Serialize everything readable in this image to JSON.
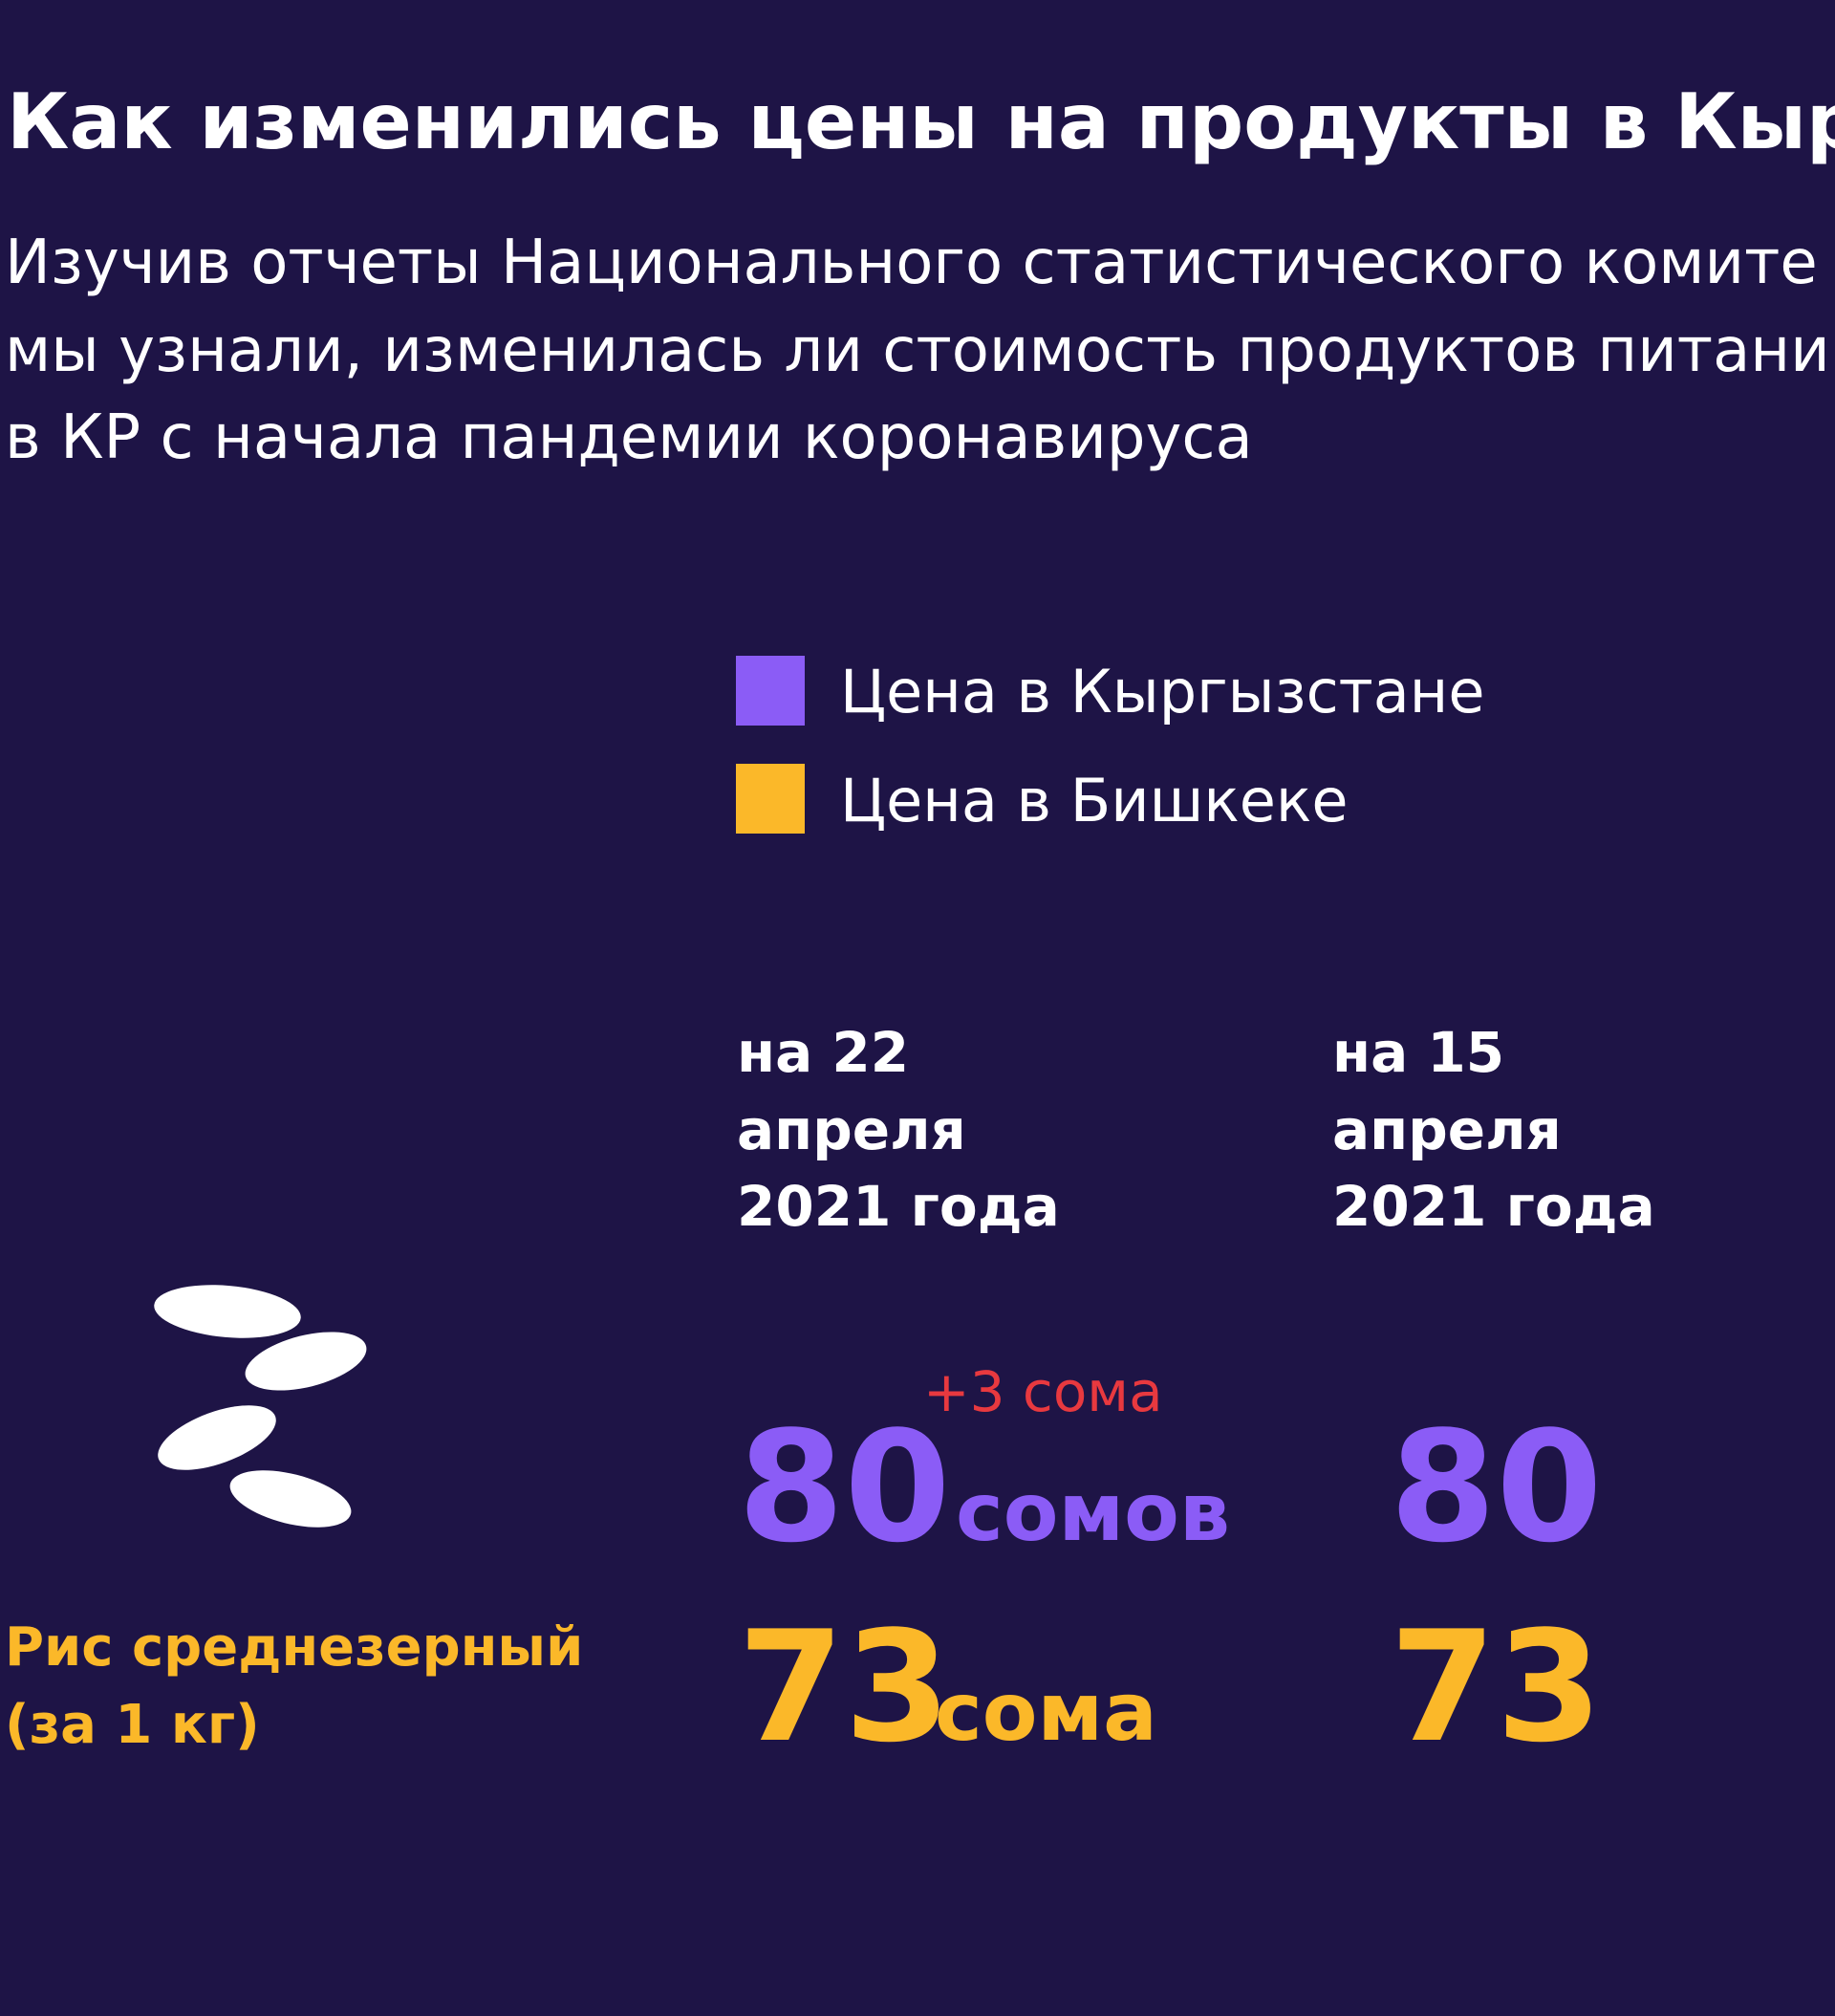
{
  "background": "#1e1446",
  "header": {
    "title": "Как изменились цены на продукты в Кыр",
    "subtitle": [
      "Изучив отчеты Национального статистического комите",
      "мы узнали, изменилась ли стоимость продуктов питани",
      "в КР с начала пандемии коронавируса"
    ]
  },
  "legend": [
    {
      "label": "Цена в Кыргызстане",
      "color": "#8b5cf6"
    },
    {
      "label": "Цена в Бишкеке",
      "color": "#fbb829"
    }
  ],
  "columns": [
    [
      "на 22",
      "апреля",
      "2021 года"
    ],
    [
      "на 15",
      "апреля",
      "2021 года"
    ]
  ],
  "item": {
    "name": [
      "Рис среднезерный",
      "(за 1 кг)"
    ],
    "name_color": "#fbb829",
    "change": "+3 сома",
    "change_color": "#e8393f",
    "rows": [
      {
        "values": [
          "80",
          "80"
        ],
        "unit": "сомов",
        "color": "#8b5cf6"
      },
      {
        "values": [
          "73",
          "73"
        ],
        "unit": "сома",
        "color": "#fbb829"
      }
    ]
  }
}
